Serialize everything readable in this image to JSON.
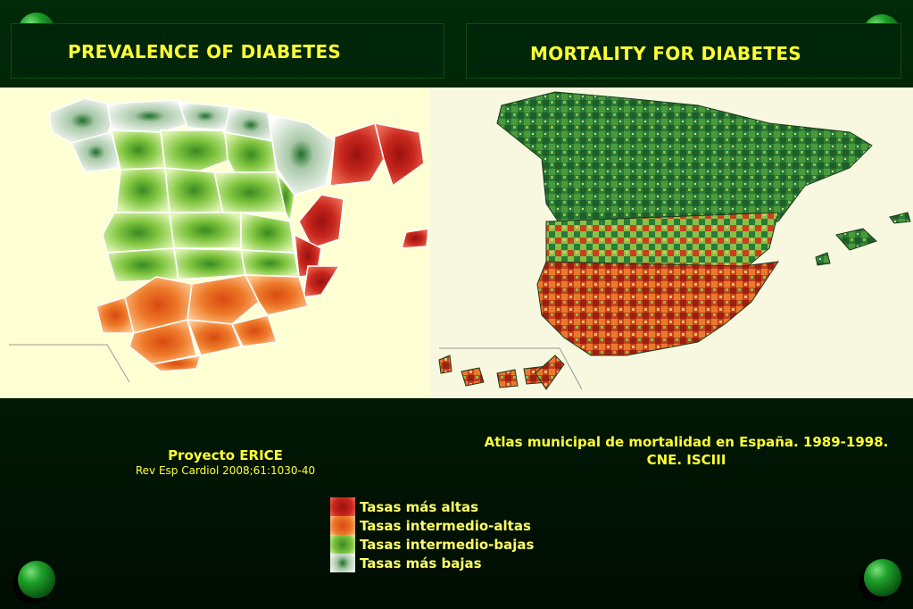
{
  "left_panel": {
    "title": "PREVALENCE OF DIABETES",
    "caption_title": "Proyecto ERICE",
    "caption_ref": "Rev Esp Cardiol 2008;61:1030-40"
  },
  "right_panel": {
    "title": "MORTALITY FOR DIABETES",
    "caption": "Atlas municipal de mortalidad en España. 1989-1998. CNE. ISCIII"
  },
  "legend": {
    "items": [
      {
        "label": "Tasas más altas",
        "color": "#c8281e"
      },
      {
        "label": "Tasas intermedio-altas",
        "color": "#ee7a2a"
      },
      {
        "label": "Tasas intermedio-bajas",
        "color": "#7ec43e"
      },
      {
        "label": "Tasas más bajas",
        "color": "#1e6e2a"
      }
    ]
  },
  "colors": {
    "title_text": "#ffff33",
    "background": "#002a08",
    "map_background": "#ffffd8"
  }
}
